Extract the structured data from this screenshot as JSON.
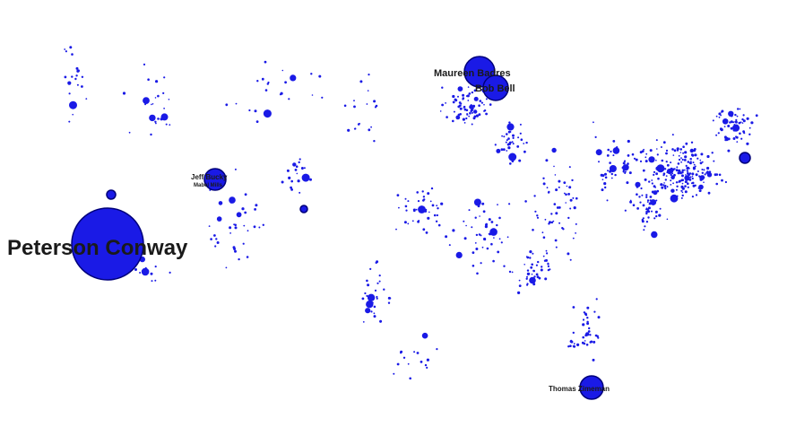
{
  "map": {
    "marker_color": "#1a1ae6",
    "marker_stroke": "#00007a",
    "labels": {
      "peterson": "Peterson Conway",
      "maureen": "Maureen Badres",
      "bob": "Bob Bell",
      "jeff": "Jeff Bucky",
      "mabel": "Mabel Mills",
      "thomas": "Thomas Zimeman"
    }
  }
}
